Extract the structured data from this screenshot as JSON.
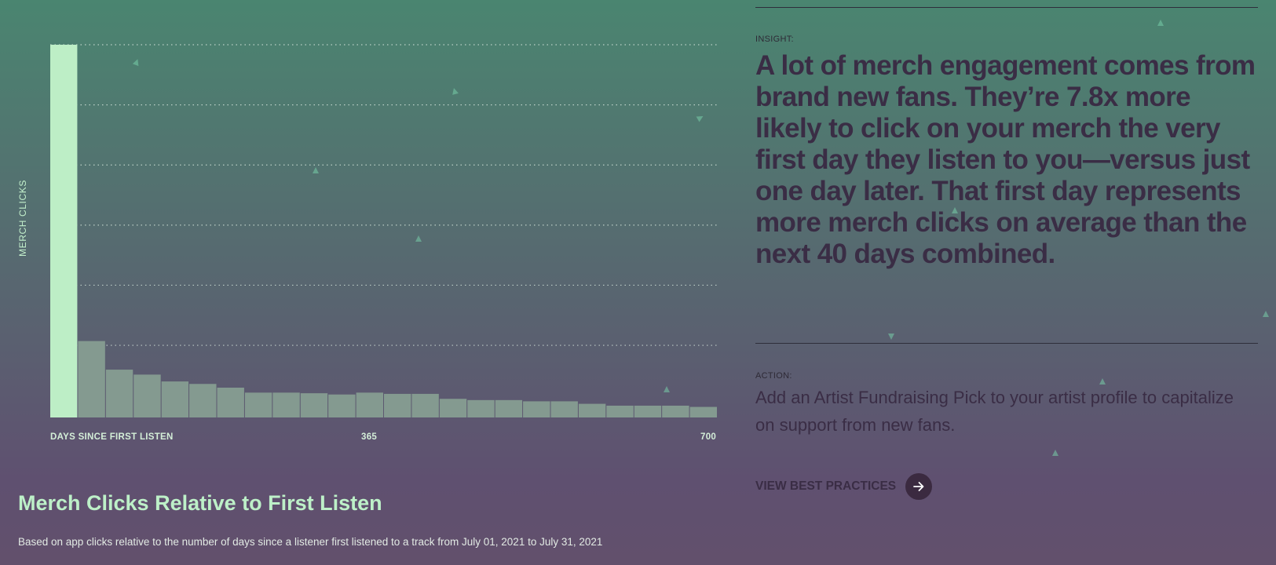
{
  "chart_data": {
    "type": "bar",
    "title": "Merch Clicks Relative to First Listen",
    "subtitle": "Based on app clicks relative to the number of days since a listener first listened to a track from July 01, 2021 to July 31, 2021",
    "xlabel": "DAYS SINCE FIRST LISTEN",
    "ylabel": "MERCH CLICKS",
    "x_ticks": [
      "365",
      "700"
    ],
    "x_range": [
      0,
      700
    ],
    "ylim": [
      0,
      6
    ],
    "grid": true,
    "values": [
      6.0,
      1.23,
      0.77,
      0.69,
      0.58,
      0.54,
      0.48,
      0.4,
      0.4,
      0.39,
      0.37,
      0.4,
      0.38,
      0.38,
      0.3,
      0.28,
      0.28,
      0.26,
      0.26,
      0.22,
      0.19,
      0.19,
      0.19,
      0.17
    ],
    "colors": {
      "highlight": "#bdeec6",
      "bar": "#849a90",
      "grid": "#d6e6dc"
    }
  },
  "insight": {
    "label": "INSIGHT:",
    "text": "A lot of merch engagement comes from brand new fans. They’re 7.8x more likely to click on your merch the very first day they listen to you—versus just one day later. That first day represents more merch clicks on average than the next 40 days combined."
  },
  "action": {
    "label": "ACTION:",
    "text": "Add an Artist Fundraising Pick to your artist profile to capitalize on support from new fans.",
    "button_label": "VIEW BEST PRACTICES"
  }
}
